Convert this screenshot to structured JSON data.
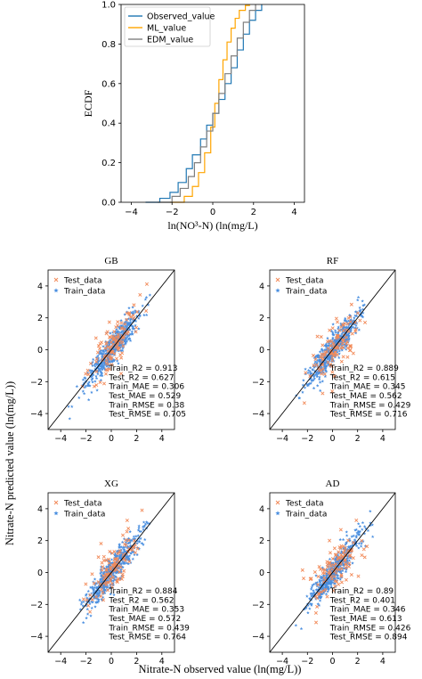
{
  "figure": {
    "shared_xlabel": "Nitrate-N observed value (ln(mg/L))",
    "shared_ylabel": "Nitrate-N predicted value (ln(mg/L))"
  },
  "colors": {
    "observed": "#1f77b4",
    "ml": "#ffa500",
    "edm": "#7f7f7f",
    "test": "#f28b5a",
    "train": "#4a8fe0",
    "diagonal": "#000000"
  },
  "chart_data": [
    {
      "type": "line",
      "name": "ecdf",
      "xlabel": "ln(NO³-N) (ln(mg/L)",
      "ylabel": "ECDF",
      "xlim": [
        -4.5,
        4.5
      ],
      "ylim": [
        0.0,
        1.0
      ],
      "xticks": [
        -4,
        -2,
        0,
        2,
        4
      ],
      "yticks": [
        0.0,
        0.2,
        0.4,
        0.6,
        0.8,
        1.0
      ],
      "legend": "top-left",
      "series": [
        {
          "name": "Observed_value",
          "color": "#1f77b4",
          "x": [
            -3.3,
            -2.6,
            -2.1,
            -1.7,
            -1.3,
            -1.0,
            -0.6,
            -0.3,
            0.0,
            0.3,
            0.6,
            0.9,
            1.2,
            1.5,
            1.8,
            2.1,
            2.4
          ],
          "y": [
            0.0,
            0.02,
            0.05,
            0.1,
            0.17,
            0.24,
            0.32,
            0.39,
            0.45,
            0.52,
            0.6,
            0.68,
            0.77,
            0.85,
            0.92,
            0.97,
            1.0
          ]
        },
        {
          "name": "ML_value",
          "color": "#ffa500",
          "x": [
            -2.1,
            -1.4,
            -1.0,
            -0.7,
            -0.4,
            -0.1,
            0.1,
            0.3,
            0.5,
            0.7,
            0.9,
            1.1,
            1.3,
            1.6,
            1.8
          ],
          "y": [
            0.0,
            0.03,
            0.08,
            0.15,
            0.25,
            0.38,
            0.5,
            0.62,
            0.72,
            0.81,
            0.88,
            0.93,
            0.97,
            0.995,
            1.0
          ]
        },
        {
          "name": "EDM_value",
          "color": "#7f7f7f",
          "x": [
            -2.7,
            -2.0,
            -1.6,
            -1.2,
            -0.9,
            -0.6,
            -0.3,
            0.0,
            0.3,
            0.6,
            0.9,
            1.2,
            1.5,
            1.8,
            2.1
          ],
          "y": [
            0.0,
            0.03,
            0.07,
            0.13,
            0.2,
            0.28,
            0.36,
            0.45,
            0.55,
            0.65,
            0.74,
            0.83,
            0.91,
            0.97,
            1.0
          ]
        }
      ]
    },
    {
      "type": "scatter",
      "title": "GB",
      "xlim": [
        -5,
        5
      ],
      "ylim": [
        -5,
        5
      ],
      "xticks": [
        -4,
        -2,
        0,
        2,
        4
      ],
      "yticks": [
        -4,
        -2,
        0,
        2,
        4
      ],
      "legend": "top-left",
      "series": [
        {
          "name": "Test_data",
          "marker": "x"
        },
        {
          "name": "Train_data",
          "marker": "star"
        }
      ],
      "spread": {
        "train": 0.45,
        "test": 0.75
      },
      "metrics": [
        "Train_R2 = 0.913",
        "Test_R2 = 0.627",
        "Train_MAE = 0.306",
        "Test_MAE = 0.529",
        "Train_RMSE = 0.38",
        "Test_RMSE = 0.705"
      ]
    },
    {
      "type": "scatter",
      "title": "RF",
      "xlim": [
        -5,
        5
      ],
      "ylim": [
        -5,
        5
      ],
      "xticks": [
        -4,
        -2,
        0,
        2,
        4
      ],
      "yticks": [
        -4,
        -2,
        0,
        2,
        4
      ],
      "legend": "top-left",
      "series": [
        {
          "name": "Test_data",
          "marker": "x"
        },
        {
          "name": "Train_data",
          "marker": "star"
        }
      ],
      "spread": {
        "train": 0.48,
        "test": 0.75
      },
      "metrics": [
        "Train_R2 = 0.889",
        "Test_R2 = 0.615",
        "Train_MAE = 0.345",
        "Test_MAE = 0.562",
        "Train_RMSE = 0.429",
        "Test_RMSE = 0.716"
      ]
    },
    {
      "type": "scatter",
      "title": "XG",
      "xlim": [
        -5,
        5
      ],
      "ylim": [
        -5,
        5
      ],
      "xticks": [
        -4,
        -2,
        0,
        2,
        4
      ],
      "yticks": [
        -4,
        -2,
        0,
        2,
        4
      ],
      "legend": "top-left",
      "series": [
        {
          "name": "Test_data",
          "marker": "x"
        },
        {
          "name": "Train_data",
          "marker": "star"
        }
      ],
      "spread": {
        "train": 0.48,
        "test": 0.8
      },
      "metrics": [
        "Train_R2 = 0.884",
        "Test_R2 = 0.562",
        "Train_MAE = 0.353",
        "Test_MAE = 0.572",
        "Train_RMSE = 0.439",
        "Test_RMSE = 0.764"
      ]
    },
    {
      "type": "scatter",
      "title": "AD",
      "xlim": [
        -5,
        5
      ],
      "ylim": [
        -5,
        5
      ],
      "xticks": [
        -4,
        -2,
        0,
        2,
        4
      ],
      "yticks": [
        -4,
        -2,
        0,
        2,
        4
      ],
      "legend": "top-left",
      "series": [
        {
          "name": "Test_data",
          "marker": "x"
        },
        {
          "name": "Train_data",
          "marker": "star"
        }
      ],
      "spread": {
        "train": 0.45,
        "test": 0.9
      },
      "metrics": [
        "Train_R2 = 0.89",
        "Test_R2 = 0.401",
        "Train_MAE = 0.346",
        "Test_MAE = 0.613",
        "Train_RMSE = 0.426",
        "Test_RMSE = 0.894"
      ]
    }
  ]
}
